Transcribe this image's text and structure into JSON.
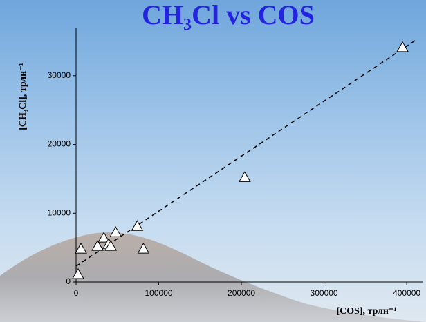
{
  "chart_data": {
    "type": "scatter",
    "title": "CH₃Cl vs COS",
    "x_label": "[COS], трлн⁻¹",
    "y_label": "[CH₃Cl], трлн⁻¹",
    "series": [
      {
        "x": [
          2500,
          5900,
          26000,
          33600,
          39500,
          42000,
          47900,
          74000,
          81500,
          204000,
          395000
        ],
        "values": [
          1100,
          4800,
          5200,
          6400,
          5500,
          5200,
          7200,
          8100,
          4800,
          15200,
          34100
        ],
        "color": "#ffffff"
      }
    ],
    "trend_line": {
      "x": [
        0,
        410000
      ],
      "values": [
        2300,
        35100
      ],
      "color": "#000000"
    },
    "xlim": [
      0,
      420000
    ],
    "ylim": [
      0,
      37000
    ],
    "xticks": [
      0,
      100000,
      200000,
      300000,
      400000
    ],
    "yticks": [
      0,
      10000,
      20000,
      30000
    ]
  }
}
